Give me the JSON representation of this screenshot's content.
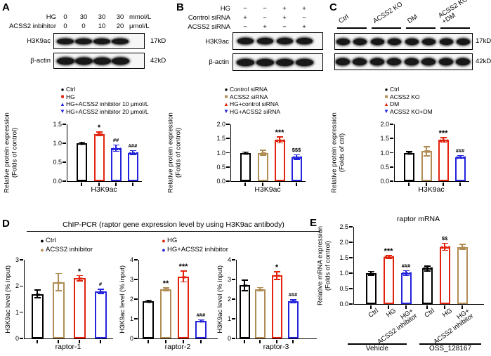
{
  "colors": {
    "black": "#000000",
    "red": "#e2240e",
    "blue": "#2424dd",
    "tan": "#b08d55"
  },
  "panels": {
    "a": {
      "label": "A",
      "blot": {
        "header_rows": [
          {
            "label": "HG",
            "values": [
              "0",
              "30",
              "30",
              "30"
            ],
            "unit": "mmol/L"
          },
          {
            "label": "ACSS2 inbihitor",
            "values": [
              "0",
              "0",
              "10",
              "20"
            ],
            "unit": "μmol/L"
          }
        ],
        "rows": [
          {
            "label": "H3K9ac",
            "kd": "17kD",
            "intensities": [
              0.92,
              1,
              0.62,
              0.74
            ]
          },
          {
            "label": "β-actin",
            "kd": "42kD",
            "intensities": [
              1,
              1,
              1,
              1
            ]
          }
        ]
      },
      "legend": [
        {
          "marker": "circle",
          "color": "black",
          "label": "Ctrl"
        },
        {
          "marker": "square",
          "color": "red",
          "label": "HG"
        },
        {
          "marker": "triangle-up",
          "color": "blue",
          "label": "HG+ACSS2 inhibitor 10 μmol/L"
        },
        {
          "marker": "triangle-down",
          "color": "blue",
          "label": "HG+ACSS2 inhibitor 20 μmol/L"
        }
      ]
    },
    "b": {
      "label": "B",
      "blot": {
        "header_rows": [
          {
            "label": "HG",
            "values": [
              "−",
              "−",
              "+",
              "+"
            ]
          },
          {
            "label": "Control siRNA",
            "values": [
              "+",
              "−",
              "+",
              "−"
            ]
          },
          {
            "label": "ACSS2 siRNA",
            "values": [
              "−",
              "+",
              "−",
              "+"
            ]
          }
        ],
        "rows": [
          {
            "label": "H3K9ac",
            "intensities": [
              0.88,
              0.82,
              1,
              0.42
            ]
          },
          {
            "label": "β-actin",
            "intensities": [
              1,
              1,
              1,
              1
            ]
          }
        ]
      },
      "legend": [
        {
          "marker": "circle",
          "color": "black",
          "label": "Control siRNA"
        },
        {
          "marker": "square",
          "color": "tan",
          "label": "ACSS2 siRNA"
        },
        {
          "marker": "triangle-up",
          "color": "red",
          "label": "HG+control siRNA"
        },
        {
          "marker": "triangle-down",
          "color": "blue",
          "label": "HG+ACSS2 siRNA"
        }
      ]
    },
    "c": {
      "label": "C",
      "blot": {
        "groups": [
          "Ctrl",
          "ACSS2 KO",
          "DM",
          "ACSS2 KO\n+DM"
        ],
        "rows": [
          {
            "kd": "17kD",
            "intensities": [
              0.9,
              0.88,
              0.78,
              0.82,
              1,
              1,
              0.5,
              0.55
            ]
          },
          {
            "kd": "42kD",
            "intensities": [
              1,
              1,
              1,
              1,
              1,
              1,
              1,
              1
            ]
          }
        ]
      },
      "legend": [
        {
          "marker": "circle",
          "color": "black",
          "label": "Ctrl"
        },
        {
          "marker": "square",
          "color": "tan",
          "label": "ACSS2 KO"
        },
        {
          "marker": "triangle-up",
          "color": "red",
          "label": "DM"
        },
        {
          "marker": "triangle-down",
          "color": "blue",
          "label": "ACSS2 KO+DM"
        }
      ]
    },
    "d": {
      "label": "D",
      "title": "ChIP-PCR (raptor gene expression level by using H3K9ac antibody)",
      "legend_cols": [
        [
          {
            "marker": "circle",
            "color": "black",
            "label": "Ctrl"
          },
          {
            "marker": "circle",
            "color": "tan",
            "label": "ACSS2 inhibitor"
          }
        ],
        [
          {
            "marker": "circle",
            "color": "red",
            "label": "HG"
          },
          {
            "marker": "circle",
            "color": "blue",
            "label": "HG+ACSS2 inhibitor"
          }
        ]
      ]
    },
    "e": {
      "label": "E"
    }
  },
  "chart_data": [
    {
      "id": "A",
      "type": "bar",
      "panel": "A",
      "xlabel": "H3K9ac",
      "ylabel": "Relative protein expression",
      "ylabel2": "(Folds of control)",
      "ylim": [
        0,
        1.5
      ],
      "yticks": [
        "0.0",
        "0.5",
        "1.0",
        "1.5"
      ],
      "categories": [
        "Ctrl",
        "HG",
        "HG+ACSS2 inhibitor 10 μmol/L",
        "HG+ACSS2 inhibitor 20 μmol/L"
      ],
      "values": [
        1.0,
        1.25,
        0.87,
        0.75
      ],
      "errors": [
        0.04,
        0.06,
        0.1,
        0.07
      ],
      "colors": [
        "black",
        "red",
        "blue",
        "blue"
      ],
      "markers": [
        "circle",
        "square",
        "triangle-up",
        "triangle-down"
      ],
      "sig": [
        "",
        "*",
        "##",
        "###"
      ]
    },
    {
      "id": "B",
      "type": "bar",
      "panel": "B",
      "xlabel": "H3K9ac",
      "ylabel": "Relative protein expression",
      "ylabel2": "(Folds of control)",
      "ylim": [
        0,
        2
      ],
      "yticks": [
        "0.0",
        "0.5",
        "1.0",
        "1.5",
        "2.0"
      ],
      "categories": [
        "Control siRNA",
        "ACSS2 siRNA",
        "HG+control siRNA",
        "HG+ACSS2 siRNA"
      ],
      "values": [
        1.0,
        1.0,
        1.45,
        0.85
      ],
      "errors": [
        0.04,
        0.1,
        0.12,
        0.1
      ],
      "colors": [
        "black",
        "tan",
        "red",
        "blue"
      ],
      "markers": [
        "circle",
        "square",
        "triangle-up",
        "triangle-down"
      ],
      "sig": [
        "",
        "",
        "***",
        "$$$"
      ]
    },
    {
      "id": "C",
      "type": "bar",
      "panel": "C",
      "xlabel": "H3K9ac",
      "ylabel": "Relative protein expression",
      "ylabel2": "(Folds of ctrl)",
      "ylim": [
        0,
        2
      ],
      "yticks": [
        "0.0",
        "0.5",
        "1.0",
        "1.5",
        "2.0"
      ],
      "categories": [
        "Ctrl",
        "ACSS2 KO",
        "DM",
        "ACSS2 KO+DM"
      ],
      "values": [
        1.0,
        1.05,
        1.45,
        0.85
      ],
      "errors": [
        0.06,
        0.18,
        0.1,
        0.07
      ],
      "colors": [
        "black",
        "tan",
        "red",
        "blue"
      ],
      "markers": [
        "circle",
        "square",
        "triangle-up",
        "triangle-down"
      ],
      "sig": [
        "",
        "",
        "***",
        "###"
      ]
    },
    {
      "id": "D1",
      "type": "bar",
      "panel": "D",
      "xlabel": "raptor-1",
      "ylabel": "H3K9ac level (% input)",
      "ylim": [
        0,
        3
      ],
      "yticks": [
        "0",
        "1",
        "2",
        "3"
      ],
      "categories": [
        "Ctrl",
        "ACSS2 inhibitor",
        "HG",
        "HG+ACSS2 inhibitor"
      ],
      "values": [
        1.7,
        2.15,
        2.3,
        1.8
      ],
      "errors": [
        0.17,
        0.35,
        0.12,
        0.1
      ],
      "colors": [
        "black",
        "tan",
        "red",
        "blue"
      ],
      "markers": [
        "circle",
        "circle",
        "circle",
        "circle"
      ],
      "sig": [
        "",
        "",
        "*",
        "#"
      ]
    },
    {
      "id": "D2",
      "type": "bar",
      "panel": "D",
      "xlabel": "raptor-2",
      "ylabel": "H3K9ac level (% input)",
      "ylim": [
        0,
        4
      ],
      "yticks": [
        "0",
        "1",
        "2",
        "3",
        "4"
      ],
      "categories": [
        "Ctrl",
        "ACSS2 inhibitor",
        "HG",
        "HG+ACSS2 inhibitor"
      ],
      "values": [
        1.9,
        2.5,
        3.15,
        0.9
      ],
      "errors": [
        0.07,
        0.1,
        0.3,
        0.07
      ],
      "colors": [
        "black",
        "tan",
        "red",
        "blue"
      ],
      "markers": [
        "circle",
        "circle",
        "circle",
        "circle"
      ],
      "sig": [
        "",
        "**",
        "***",
        "###"
      ]
    },
    {
      "id": "D3",
      "type": "bar",
      "panel": "D",
      "xlabel": "raptor-3",
      "ylabel": "H3K9ac level (% input)",
      "ylim": [
        0,
        4
      ],
      "yticks": [
        "0",
        "1",
        "2",
        "3",
        "4"
      ],
      "categories": [
        "Ctrl",
        "ACSS2 inhibitor",
        "HG",
        "HG+ACSS2 inhibitor"
      ],
      "values": [
        2.7,
        2.5,
        3.2,
        1.9
      ],
      "errors": [
        0.3,
        0.12,
        0.22,
        0.1
      ],
      "colors": [
        "black",
        "tan",
        "red",
        "blue"
      ],
      "markers": [
        "circle",
        "circle",
        "circle",
        "circle"
      ],
      "sig": [
        "",
        "",
        "*",
        "###"
      ]
    },
    {
      "id": "E",
      "type": "bar",
      "panel": "E",
      "title": "raptor mRNA",
      "xlabel": "",
      "ylabel": "Relative mRNA expression",
      "ylabel2": "(Folds of control)",
      "ylim": [
        0,
        2.5
      ],
      "yticks": [
        "0.0",
        "0.5",
        "1.0",
        "1.5",
        "2.0",
        "2.5"
      ],
      "categories": [
        "Ctrl",
        "HG",
        "HG+\nACSS2 inhibitor",
        "Ctrl",
        "HG",
        "HG+\nACSS2 inhibitor"
      ],
      "values": [
        1.0,
        1.52,
        1.0,
        1.15,
        1.85,
        1.85
      ],
      "errors": [
        0.08,
        0.07,
        0.1,
        0.1,
        0.13,
        0.1
      ],
      "colors": [
        "black",
        "red",
        "blue",
        "black",
        "red",
        "tan"
      ],
      "markers": [
        "circle",
        "triangle-down",
        "triangle-down",
        "triangle-down",
        "triangle-down",
        "circle"
      ],
      "sig": [
        "",
        "***",
        "###",
        "",
        "$$",
        ""
      ],
      "groups": [
        {
          "label": "Vehicle",
          "bars": [
            0,
            1,
            2
          ]
        },
        {
          "label": "OSS_128167",
          "bars": [
            3,
            4,
            5
          ]
        }
      ]
    }
  ]
}
